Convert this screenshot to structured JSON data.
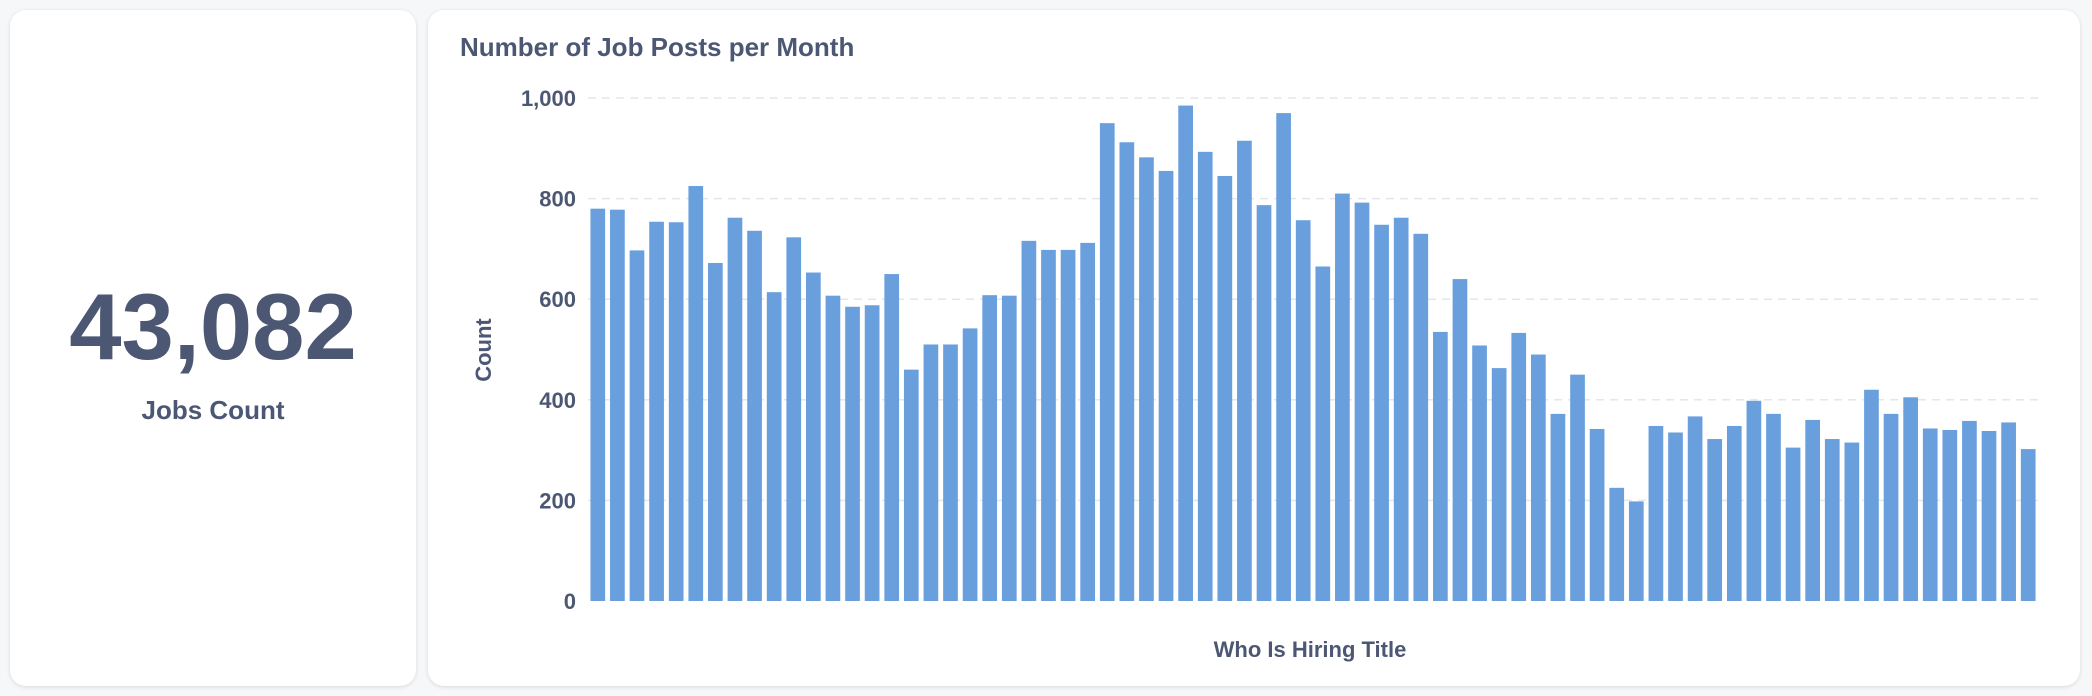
{
  "scalar": {
    "value": "43,082",
    "label": "Jobs Count"
  },
  "chart": {
    "title": "Number of Job Posts per Month"
  },
  "colors": {
    "bar": "#6a9fde",
    "text": "#4c5773",
    "grid": "#e3e6ec"
  },
  "chart_data": {
    "type": "bar",
    "title": "Number of Job Posts per Month",
    "xlabel": "Who Is Hiring Title",
    "ylabel": "Count",
    "ylim": [
      0,
      1000
    ],
    "yticks": [
      "0",
      "200",
      "400",
      "600",
      "800",
      "1,000"
    ],
    "grid": true,
    "legend": "none",
    "values": [
      780,
      778,
      697,
      754,
      753,
      825,
      672,
      762,
      736,
      614,
      723,
      653,
      607,
      585,
      588,
      650,
      460,
      510,
      510,
      542,
      608,
      607,
      716,
      698,
      698,
      712,
      950,
      912,
      882,
      855,
      985,
      893,
      845,
      915,
      787,
      970,
      757,
      665,
      810,
      792,
      748,
      762,
      730,
      535,
      640,
      508,
      463,
      533,
      490,
      372,
      450,
      342,
      225,
      198,
      348,
      335,
      367,
      322,
      348,
      398,
      372,
      305,
      360,
      322,
      315,
      420,
      372,
      405,
      343,
      340,
      358,
      338,
      355,
      302
    ]
  }
}
